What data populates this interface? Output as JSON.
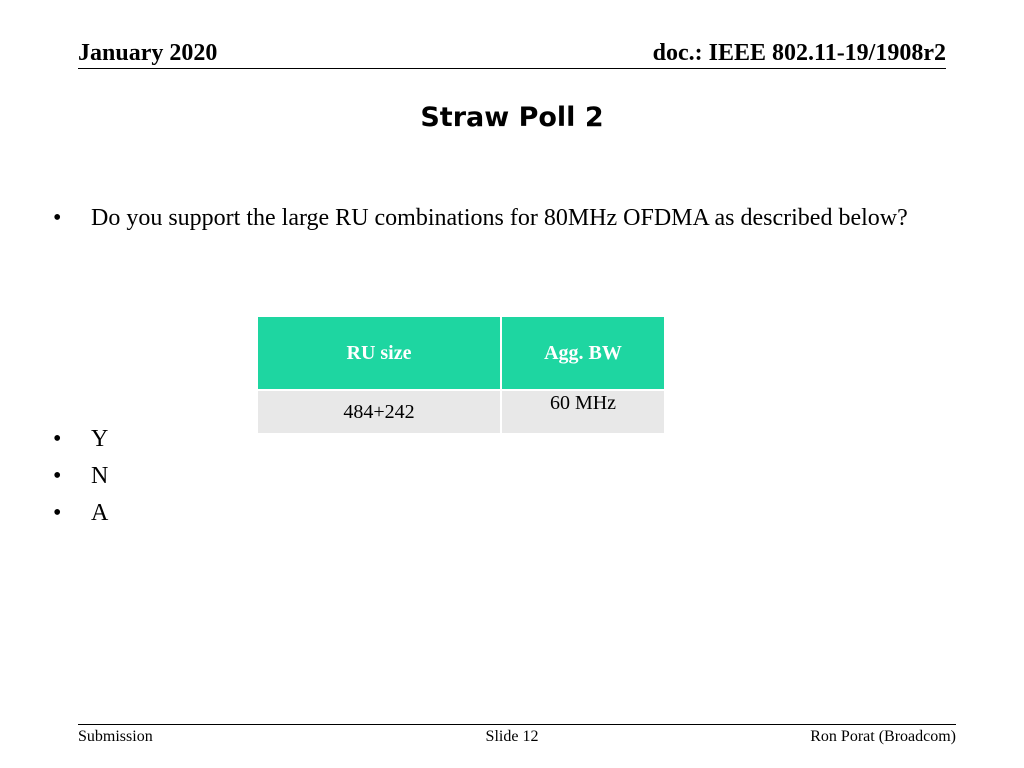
{
  "header": {
    "date": "January 2020",
    "doc": "doc.: IEEE 802.11-19/1908r2"
  },
  "title": "Straw Poll 2",
  "question": "Do you support the large RU combinations for 80MHz OFDMA as described below?",
  "table": {
    "header": [
      "RU size",
      "Agg. BW"
    ],
    "rows": [
      [
        "484+242",
        "60 MHz"
      ]
    ]
  },
  "options": [
    "Y",
    "N",
    "A"
  ],
  "footer": {
    "left": "Submission",
    "center": "Slide 12",
    "right": "Ron Porat (Broadcom)"
  }
}
